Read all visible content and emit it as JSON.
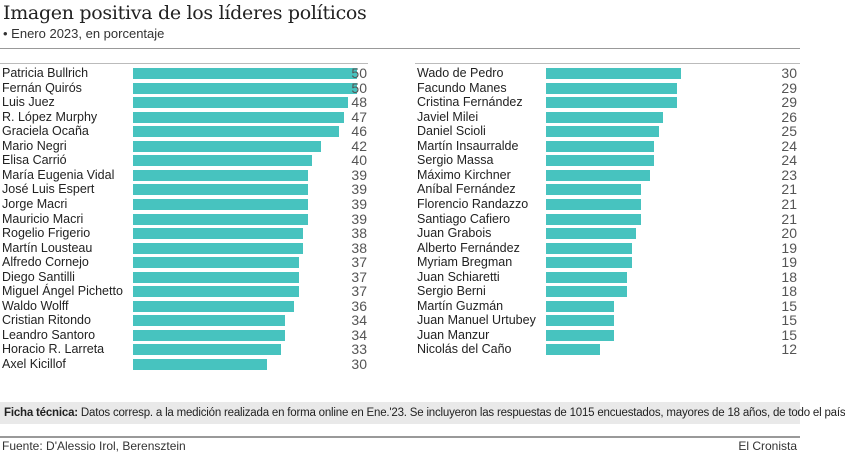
{
  "title": "Imagen positiva de los líderes políticos",
  "subtitle": "• Enero 2023, en porcentaje",
  "chart_data": [
    {
      "type": "bar",
      "orientation": "horizontal",
      "categories": [
        "Patricia Bullrich",
        "Fernán Quirós",
        "Luis Juez",
        "R. López Murphy",
        "Graciela Ocaña",
        "Mario Negri",
        "Elisa Carrió",
        "María Eugenia Vidal",
        "José Luis Espert",
        "Jorge Macri",
        "Mauricio Macri",
        "Rogelio Frigerio",
        "Martín Lousteau",
        "Alfredo Cornejo",
        "Diego Santilli",
        "Miguel Ángel Pichetto",
        "Waldo Wolff",
        "Cristian Ritondo",
        "Leandro Santoro",
        "Horacio R. Larreta",
        "Axel Kicillof"
      ],
      "values": [
        50,
        50,
        48,
        47,
        46,
        42,
        40,
        39,
        39,
        39,
        39,
        38,
        38,
        37,
        37,
        37,
        36,
        34,
        34,
        33,
        30
      ],
      "xlim": [
        0,
        50
      ],
      "color": "#47c3bf"
    },
    {
      "type": "bar",
      "orientation": "horizontal",
      "categories": [
        "Wado de Pedro",
        "Facundo Manes",
        "Cristina Fernández",
        "Javiel Milei",
        "Daniel Scioli",
        "Martín Insaurralde",
        "Sergio Massa",
        "Máximo Kirchner",
        "Aníbal Fernández",
        "Florencio Randazzo",
        "Santiago Cafiero",
        "Juan Grabois",
        "Alberto Fernández",
        "Myriam Bregman",
        "Juan Schiaretti",
        "Sergio Berni",
        "Martín Guzmán",
        "Juan Manuel Urtubey",
        "Juan Manzur",
        "Nicolás del Caño"
      ],
      "values": [
        30,
        29,
        29,
        26,
        25,
        24,
        24,
        23,
        21,
        21,
        21,
        20,
        19,
        19,
        18,
        18,
        15,
        15,
        15,
        12
      ],
      "xlim": [
        0,
        50
      ],
      "color": "#47c3bf"
    }
  ],
  "ficha": {
    "label": "Ficha técnica:",
    "text": " Datos corresp. a la medición realizada en forma online en Ene.'23. Se incluyeron las respuestas de 1015 encuestados, mayores de 18 años, de todo el país"
  },
  "source": "Fuente: D'Alessio Irol, Berensztein",
  "brand": "El Cronista"
}
